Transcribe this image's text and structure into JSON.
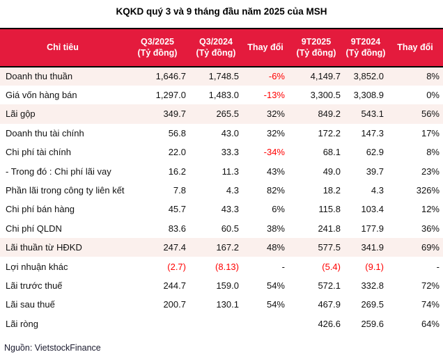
{
  "title": "KQKD quý 3 và 9 tháng đầu năm 2025 của MSH",
  "source": "Nguồn: VietstockFinance",
  "colors": {
    "header_bg": "#E41B3D",
    "header_text": "#FFFFFF",
    "highlight_row_bg": "#FBF0ED",
    "negative_text": "#FF0000",
    "border": "#000000"
  },
  "table": {
    "columns": [
      {
        "label": "Chỉ tiêu",
        "sub": ""
      },
      {
        "label": "Q3/2025",
        "sub": "(Tỷ đồng)"
      },
      {
        "label": "Q3/2024",
        "sub": "(Tỷ đồng)"
      },
      {
        "label": "Thay đổi",
        "sub": ""
      },
      {
        "label": "9T2025",
        "sub": "(Tỷ đồng)"
      },
      {
        "label": "9T2024",
        "sub": "(Tỷ đồng)"
      },
      {
        "label": "Thay đổi",
        "sub": ""
      }
    ],
    "rows": [
      {
        "label": "Doanh thu thuần",
        "cells": [
          "1,646.7",
          "1,748.5",
          "-6%",
          "4,149.7",
          "3,852.0",
          "8%"
        ],
        "highlight": true,
        "red_cells": [
          2
        ]
      },
      {
        "label": "Giá vốn hàng bán",
        "cells": [
          "1,297.0",
          "1,483.0",
          "-13%",
          "3,300.5",
          "3,308.9",
          "0%"
        ],
        "highlight": false,
        "red_cells": [
          2
        ]
      },
      {
        "label": "Lãi gộp",
        "cells": [
          "349.7",
          "265.5",
          "32%",
          "849.2",
          "543.1",
          "56%"
        ],
        "highlight": true,
        "red_cells": []
      },
      {
        "label": "Doanh thu tài chính",
        "cells": [
          "56.8",
          "43.0",
          "32%",
          "172.2",
          "147.3",
          "17%"
        ],
        "highlight": false,
        "red_cells": []
      },
      {
        "label": "Chi phí tài chính",
        "cells": [
          "22.0",
          "33.3",
          "-34%",
          "68.1",
          "62.9",
          "8%"
        ],
        "highlight": false,
        "red_cells": [
          2
        ]
      },
      {
        "label": "- Trong đó : Chi phí lãi vay",
        "cells": [
          "16.2",
          "11.3",
          "43%",
          "49.0",
          "39.7",
          "23%"
        ],
        "highlight": false,
        "red_cells": []
      },
      {
        "label": "Phần lãi trong công ty liên kết",
        "cells": [
          "7.8",
          "4.3",
          "82%",
          "18.2",
          "4.3",
          "326%"
        ],
        "highlight": false,
        "red_cells": []
      },
      {
        "label": "Chi phí bán hàng",
        "cells": [
          "45.7",
          "43.3",
          "6%",
          "115.8",
          "103.4",
          "12%"
        ],
        "highlight": false,
        "red_cells": []
      },
      {
        "label": "Chi phí QLDN",
        "cells": [
          "83.6",
          "60.5",
          "38%",
          "241.8",
          "177.9",
          "36%"
        ],
        "highlight": false,
        "red_cells": []
      },
      {
        "label": "Lãi thuần từ HĐKD",
        "cells": [
          "247.4",
          "167.2",
          "48%",
          "577.5",
          "341.9",
          "69%"
        ],
        "highlight": true,
        "red_cells": []
      },
      {
        "label": "Lợi nhuận khác",
        "cells": [
          "(2.7)",
          "(8.13)",
          "-",
          "(5.4)",
          "(9.1)",
          "-"
        ],
        "highlight": false,
        "red_cells": [
          0,
          1,
          3,
          4
        ]
      },
      {
        "label": "Lãi trước thuế",
        "cells": [
          "244.7",
          "159.0",
          "54%",
          "572.1",
          "332.8",
          "72%"
        ],
        "highlight": false,
        "red_cells": []
      },
      {
        "label": "Lãi sau thuế",
        "cells": [
          "200.7",
          "130.1",
          "54%",
          "467.9",
          "269.5",
          "74%"
        ],
        "highlight": false,
        "red_cells": []
      },
      {
        "label": "Lãi ròng",
        "cells": [
          "",
          "",
          "",
          "426.6",
          "259.6",
          "64%"
        ],
        "highlight": false,
        "red_cells": []
      }
    ]
  },
  "chart_data": {
    "type": "table",
    "title": "KQKD quý 3 và 9 tháng đầu năm 2025 của MSH",
    "columns": [
      "Chỉ tiêu",
      "Q3/2025 (Tỷ đồng)",
      "Q3/2024 (Tỷ đồng)",
      "Thay đổi",
      "9T2025 (Tỷ đồng)",
      "9T2024 (Tỷ đồng)",
      "Thay đổi"
    ],
    "rows": [
      [
        "Doanh thu thuần",
        "1,646.7",
        "1,748.5",
        "-6%",
        "4,149.7",
        "3,852.0",
        "8%"
      ],
      [
        "Giá vốn hàng bán",
        "1,297.0",
        "1,483.0",
        "-13%",
        "3,300.5",
        "3,308.9",
        "0%"
      ],
      [
        "Lãi gộp",
        "349.7",
        "265.5",
        "32%",
        "849.2",
        "543.1",
        "56%"
      ],
      [
        "Doanh thu tài chính",
        "56.8",
        "43.0",
        "32%",
        "172.2",
        "147.3",
        "17%"
      ],
      [
        "Chi phí tài chính",
        "22.0",
        "33.3",
        "-34%",
        "68.1",
        "62.9",
        "8%"
      ],
      [
        "- Trong đó : Chi phí lãi vay",
        "16.2",
        "11.3",
        "43%",
        "49.0",
        "39.7",
        "23%"
      ],
      [
        "Phần lãi trong công ty liên kết",
        "7.8",
        "4.3",
        "82%",
        "18.2",
        "4.3",
        "326%"
      ],
      [
        "Chi phí bán hàng",
        "45.7",
        "43.3",
        "6%",
        "115.8",
        "103.4",
        "12%"
      ],
      [
        "Chi phí QLDN",
        "83.6",
        "60.5",
        "38%",
        "241.8",
        "177.9",
        "36%"
      ],
      [
        "Lãi thuần từ HĐKD",
        "247.4",
        "167.2",
        "48%",
        "577.5",
        "341.9",
        "69%"
      ],
      [
        "Lợi nhuận khác",
        "(2.7)",
        "(8.13)",
        "-",
        "(5.4)",
        "(9.1)",
        "-"
      ],
      [
        "Lãi trước thuế",
        "244.7",
        "159.0",
        "54%",
        "572.1",
        "332.8",
        "72%"
      ],
      [
        "Lãi sau thuế",
        "200.7",
        "130.1",
        "54%",
        "467.9",
        "269.5",
        "74%"
      ],
      [
        "Lãi ròng",
        "",
        "",
        "",
        "426.6",
        "259.6",
        "64%"
      ]
    ],
    "source_note": "Nguồn: VietstockFinance",
    "highlighted_rows": [
      "Doanh thu thuần",
      "Lãi gộp",
      "Lãi thuần từ HĐKD"
    ]
  }
}
